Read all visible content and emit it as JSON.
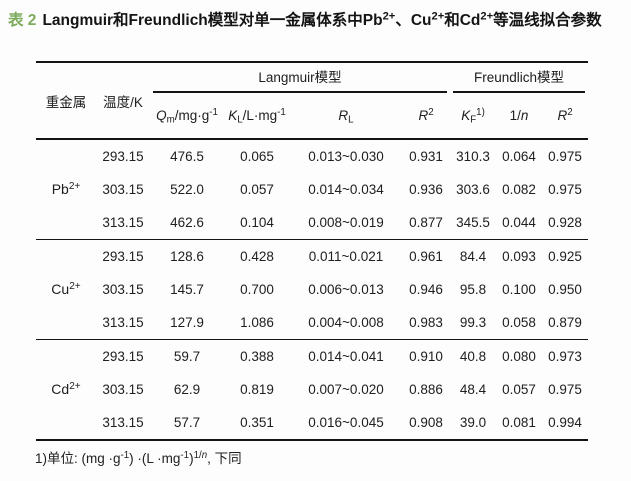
{
  "caption": {
    "label": "表 2",
    "title_html": "Langmuir和Freundlich模型对单一金属体系中Pb<sup>2+</sup>、Cu<sup>2+</sup>和Cd<sup>2+</sup>等温线拟合参数"
  },
  "header": {
    "metal": "重金属",
    "temperature": "温度/K",
    "langmuir_group": "Langmuir模型",
    "freundlich_group": "Freundlich模型",
    "qm_html": "<i>Q</i><sub>m</sub>/mg·g<sup>-1</sup>",
    "kl_html": "<i>K</i><sub>L</sub>/L·mg<sup>-1</sup>",
    "rl_html": "<i>R</i><sub>L</sub>",
    "r2_langmuir_html": "<i>R</i><sup>2</sup>",
    "kf_html": "<i>K</i><sub>F</sub><sup>1)</sup>",
    "one_over_n_html": "1/<i>n</i>",
    "r2_freundlich_html": "<i>R</i><sup>2</sup>"
  },
  "groups": [
    {
      "metal_html": "Pb<sup>2+</sup>",
      "rows": [
        [
          "293.15",
          "476.5",
          "0.065",
          "0.013~0.030",
          "0.931",
          "310.3",
          "0.064",
          "0.975"
        ],
        [
          "303.15",
          "522.0",
          "0.057",
          "0.014~0.034",
          "0.936",
          "303.6",
          "0.082",
          "0.975"
        ],
        [
          "313.15",
          "462.6",
          "0.104",
          "0.008~0.019",
          "0.877",
          "345.5",
          "0.044",
          "0.928"
        ]
      ]
    },
    {
      "metal_html": "Cu<sup>2+</sup>",
      "rows": [
        [
          "293.15",
          "128.6",
          "0.428",
          "0.011~0.021",
          "0.961",
          "84.4",
          "0.093",
          "0.925"
        ],
        [
          "303.15",
          "145.7",
          "0.700",
          "0.006~0.013",
          "0.946",
          "95.8",
          "0.100",
          "0.950"
        ],
        [
          "313.15",
          "127.9",
          "1.086",
          "0.004~0.008",
          "0.983",
          "99.3",
          "0.058",
          "0.879"
        ]
      ]
    },
    {
      "metal_html": "Cd<sup>2+</sup>",
      "rows": [
        [
          "293.15",
          "59.7",
          "0.388",
          "0.014~0.041",
          "0.910",
          "40.8",
          "0.080",
          "0.973"
        ],
        [
          "303.15",
          "62.9",
          "0.819",
          "0.007~0.020",
          "0.886",
          "48.4",
          "0.057",
          "0.975"
        ],
        [
          "313.15",
          "57.7",
          "0.351",
          "0.016~0.045",
          "0.908",
          "39.0",
          "0.081",
          "0.994"
        ]
      ]
    }
  ],
  "footnote_html": "1)单位: (mg ·g<sup>-1</sup>) ·(L ·mg<sup>-1</sup>)<sup>1/<i>n</i></sup>, 下同",
  "colors": {
    "caption_accent": "#7cab5e",
    "text": "#1c1c1c",
    "rule": "#141414"
  }
}
